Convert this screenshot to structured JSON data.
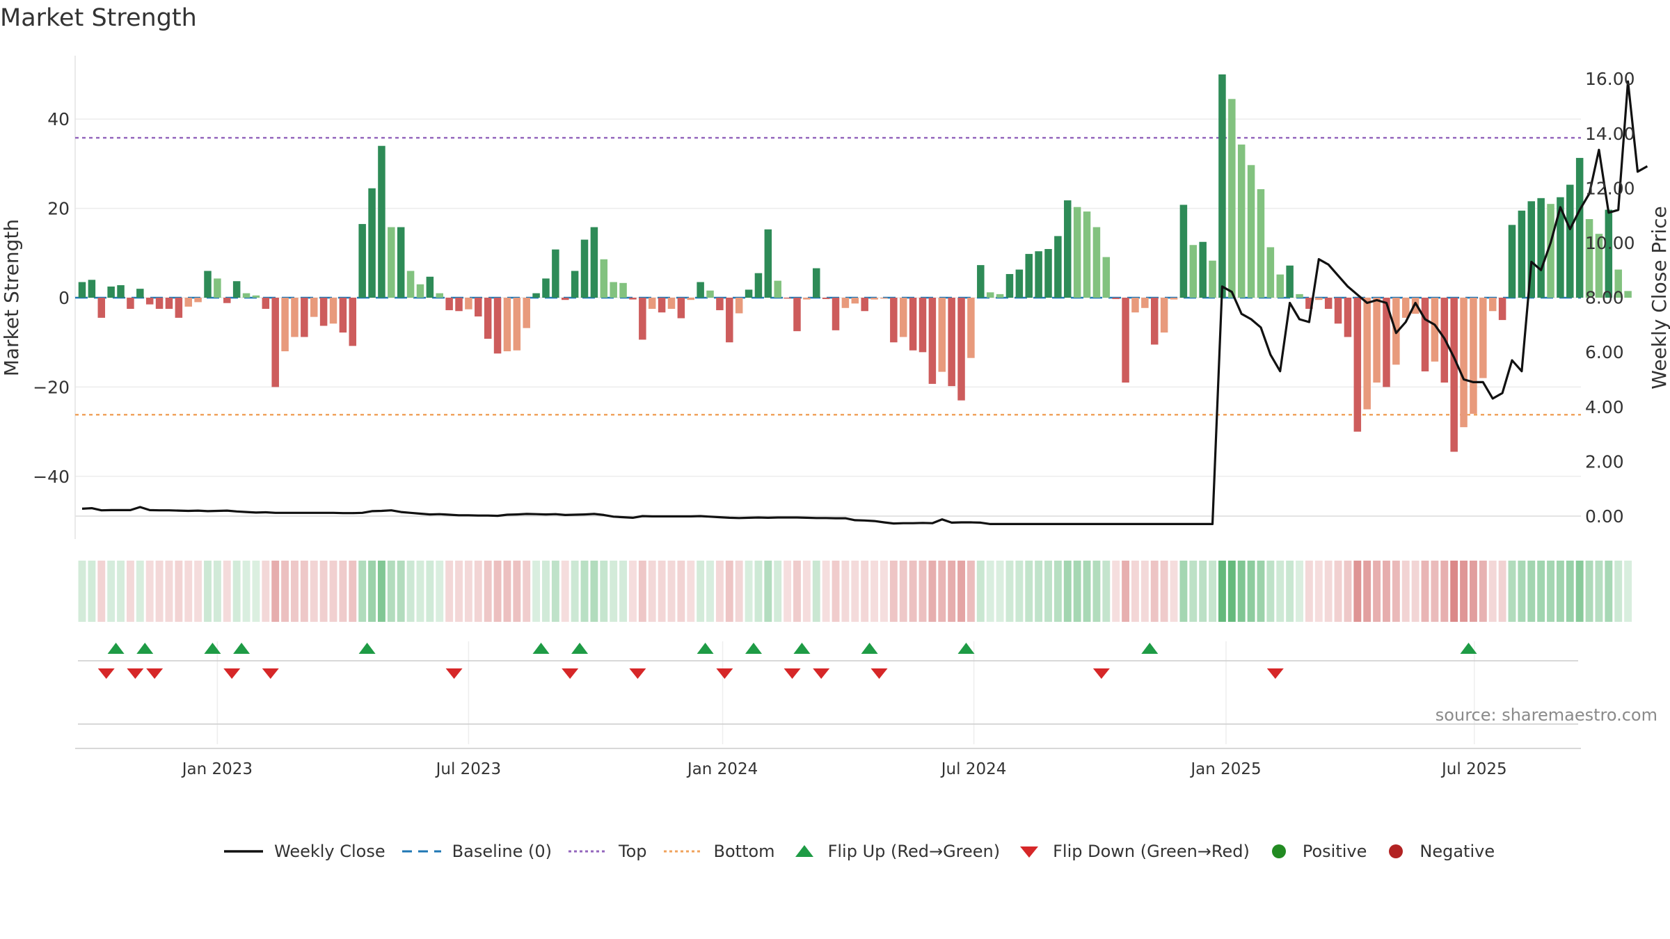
{
  "title": "Market Strength",
  "source": "source: sharemaestro.com",
  "colors": {
    "strong_pos": "#2e8b57",
    "weak_pos": "#82c27f",
    "strong_neg": "#cd5c5c",
    "weak_neg": "#e89a7c",
    "price_line": "#111111",
    "baseline": "#1f77b4",
    "top_line": "#9467bd",
    "bottom_line": "#f0a35e",
    "flip_up": "#1e9b45",
    "flip_down": "#d62728",
    "positive": "#228b22",
    "negative": "#b22222"
  },
  "legend": [
    {
      "label": "Weekly Close",
      "icon": "line-solid"
    },
    {
      "label": "Baseline (0)",
      "icon": "line-dashed"
    },
    {
      "label": "Top",
      "icon": "line-dotted"
    },
    {
      "label": "Bottom",
      "icon": "line-dotted"
    },
    {
      "label": "Flip Up (Red→Green)",
      "icon": "triangle-up"
    },
    {
      "label": "Flip Down (Green→Red)",
      "icon": "triangle-down"
    },
    {
      "label": "Positive",
      "icon": "circle"
    },
    {
      "label": "Negative",
      "icon": "circle"
    }
  ],
  "chart_data": {
    "type": "bar",
    "title": "Market Strength",
    "ylabel": "Market Strength",
    "y2label": "Weekly Close Price",
    "ylim": [
      -54,
      54
    ],
    "y2lim": [
      -0.66,
      16.44
    ],
    "yticks": [
      -40,
      -20,
      0,
      20,
      40
    ],
    "ytick_labels": [
      "−40",
      "−20",
      "0",
      "20",
      "40"
    ],
    "y2ticks": [
      0,
      2,
      4,
      6,
      8,
      10,
      12,
      14,
      16
    ],
    "y2tick_labels": [
      "0.00",
      "2.00",
      "4.00",
      "6.00",
      "8.00",
      "10.00",
      "12.00",
      "14.00",
      "16.00"
    ],
    "xtick_labels": [
      "Jan 2023",
      "Jul 2023",
      "Jan 2024",
      "Jul 2024",
      "Jan 2025",
      "Jul 2025"
    ],
    "xtick_weeks": [
      14,
      40,
      66.3,
      92.3,
      118.4,
      144.1
    ],
    "top": 35.8,
    "bottom": -26.2,
    "baseline": 0,
    "grid": true,
    "legend_position": "bottom",
    "series": [
      {
        "name": "Market Strength",
        "values": [
          3.5,
          4,
          -4.5,
          2.5,
          2.8,
          -2.5,
          2,
          -1.5,
          -2.5,
          -2.5,
          -4.5,
          -2,
          -1,
          6,
          4.3,
          -1.2,
          3.7,
          1,
          0.5,
          -2.5,
          -20,
          -12,
          -8.8,
          -8.8,
          -4.3,
          -6.3,
          -5.8,
          -7.8,
          -10.8,
          16.5,
          24.5,
          34,
          15.8,
          15.8,
          6,
          3,
          4.7,
          1,
          -2.8,
          -3,
          -2.6,
          -4.2,
          -9.2,
          -12.5,
          -12,
          -11.8,
          -6.8,
          1,
          4.3,
          10.8,
          -0.5,
          6,
          13,
          15.8,
          8.6,
          3.5,
          3.3,
          -0.4,
          -9.4,
          -2.5,
          -3.3,
          -2.5,
          -4.6,
          -0.5,
          3.5,
          1.6,
          -2.8,
          -10,
          -3.5,
          1.8,
          5.5,
          15.3,
          3.8,
          -0.2,
          -7.5,
          -0.4,
          6.6,
          -0.3,
          -7.3,
          -2.3,
          -1.3,
          -3,
          -0.4,
          -0.2,
          -10,
          -8.8,
          -11.8,
          -12.2,
          -19.3,
          -16.6,
          -19.8,
          -23,
          -13.5,
          7.3,
          1.2,
          0.8,
          5.3,
          6.3,
          9.8,
          10.4,
          10.9,
          13.8,
          21.8,
          20.3,
          19.3,
          15.8,
          9.1,
          -0.3,
          -19,
          -3.3,
          -2.3,
          -10.5,
          -7.8,
          -0.4,
          20.8,
          11.8,
          12.5,
          8.3,
          50,
          44.5,
          34.3,
          29.7,
          24.3,
          11.3,
          5.2,
          7.2,
          0.8,
          -2.5,
          -0.5,
          -2.5,
          -5.8,
          -8.8,
          -30,
          -25,
          -19,
          -20,
          -15,
          -4.5,
          -3.6,
          -16.5,
          -14.3,
          -19,
          -34.5,
          -29,
          -26,
          -18,
          -3,
          -5,
          16.3,
          19.5,
          21.6,
          22.3,
          21,
          22.5,
          25.3,
          31.3,
          17.6,
          14.3,
          19.7,
          6.3,
          1.5
        ]
      },
      {
        "name": "Weekly Close",
        "values": [
          0.27,
          0.29,
          0.21,
          0.22,
          0.22,
          0.22,
          0.33,
          0.22,
          0.21,
          0.21,
          0.2,
          0.19,
          0.2,
          0.18,
          0.19,
          0.2,
          0.17,
          0.15,
          0.13,
          0.14,
          0.12,
          0.12,
          0.12,
          0.12,
          0.12,
          0.12,
          0.12,
          0.11,
          0.11,
          0.12,
          0.18,
          0.19,
          0.21,
          0.15,
          0.12,
          0.09,
          0.06,
          0.07,
          0.05,
          0.03,
          0.03,
          0.02,
          0.02,
          0.01,
          0.05,
          0.06,
          0.08,
          0.07,
          0.06,
          0.07,
          0.04,
          0.05,
          0.06,
          0.08,
          0.04,
          -0.02,
          -0.04,
          -0.06,
          0.0,
          -0.01,
          -0.01,
          -0.01,
          -0.01,
          -0.01,
          0.0,
          -0.02,
          -0.04,
          -0.06,
          -0.07,
          -0.06,
          -0.05,
          -0.06,
          -0.05,
          -0.05,
          -0.05,
          -0.06,
          -0.07,
          -0.07,
          -0.08,
          -0.08,
          -0.15,
          -0.16,
          -0.18,
          -0.23,
          -0.27,
          -0.26,
          -0.26,
          -0.25,
          -0.26,
          -0.12,
          -0.24,
          -0.23,
          -0.23,
          -0.24,
          -0.29,
          -0.29,
          -0.29,
          -0.29,
          -0.29,
          -0.29,
          -0.29,
          -0.29,
          -0.29,
          -0.29,
          -0.29,
          -0.29,
          -0.29,
          -0.29,
          -0.29,
          -0.29,
          -0.29,
          -0.29,
          -0.29,
          -0.29,
          -0.29,
          -0.29,
          -0.29,
          -0.29,
          8.4,
          8.2,
          7.4,
          7.2,
          6.9,
          5.9,
          5.3,
          7.8,
          7.2,
          7.1,
          9.4,
          9.2,
          8.8,
          8.4,
          8.1,
          7.8,
          7.9,
          7.8,
          6.7,
          7.1,
          7.8,
          7.2,
          7.0,
          6.5,
          5.8,
          5.0,
          4.9,
          4.9,
          4.3,
          4.5,
          5.7,
          5.3,
          9.3,
          9.0,
          10.0,
          11.3,
          10.5,
          11.2,
          11.8,
          13.4,
          11.1,
          11.2,
          15.9,
          12.6,
          12.8
        ]
      }
    ],
    "flip_up_weeks": [
      3.5,
      6.5,
      13.5,
      16.5,
      29.5,
      47.5,
      51.5,
      64.5,
      69.5,
      74.5,
      81.5,
      91.5,
      110.5,
      143.5
    ],
    "flip_down_weeks": [
      2.5,
      5.5,
      7.5,
      15.5,
      19.5,
      38.5,
      50.5,
      57.5,
      66.5,
      73.5,
      76.5,
      82.5,
      105.5,
      123.5
    ]
  }
}
